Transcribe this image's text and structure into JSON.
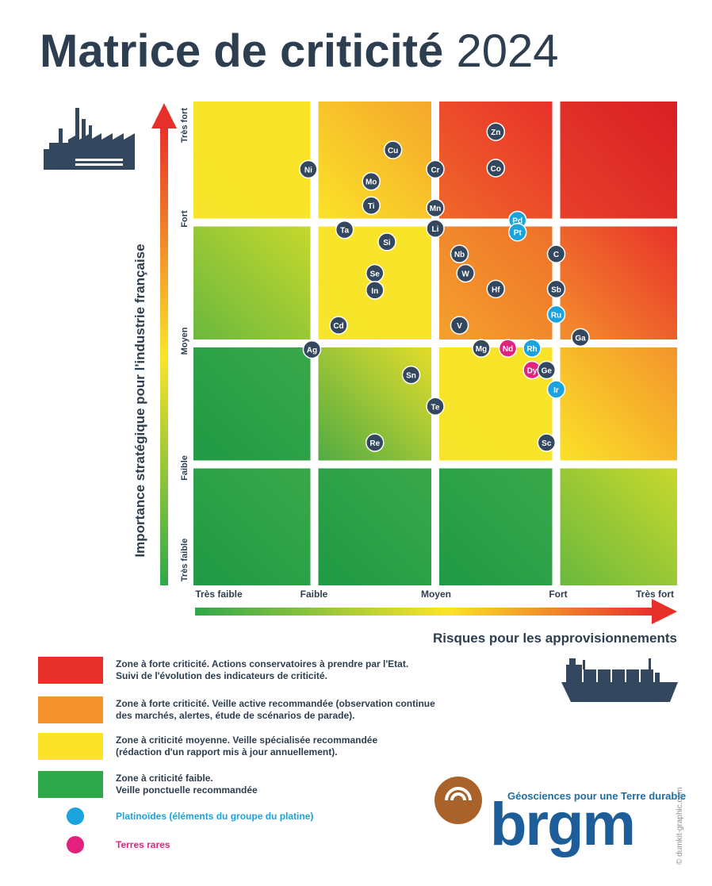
{
  "title": {
    "main": "Matrice de criticité",
    "year": "2024"
  },
  "chart_data": {
    "type": "scatter",
    "xlabel": "Risques pour les approvisionnements",
    "ylabel": "Importance stratégique pour l'industrie française",
    "x_ticks": [
      "Très faible",
      "Faible",
      "Moyen",
      "Fort",
      "Très fort"
    ],
    "y_ticks": [
      "Très faible",
      "Faible",
      "Moyen",
      "Fort",
      "Très fort"
    ],
    "xlim": [
      0,
      4
    ],
    "ylim": [
      0,
      4
    ],
    "zones": [
      [
        "green",
        "green",
        "green",
        "green-yellow"
      ],
      [
        "green",
        "yellow-green",
        "yellow",
        "yellow-orange"
      ],
      [
        "green-yellow",
        "yellow",
        "orange",
        "orange-red"
      ],
      [
        "yellow",
        "orange-yellow",
        "red-orange",
        "red"
      ]
    ],
    "points": [
      {
        "label": "Zn",
        "x": 2.5,
        "y": 3.75,
        "group": "default"
      },
      {
        "label": "Cu",
        "x": 1.65,
        "y": 3.6,
        "group": "default"
      },
      {
        "label": "Ni",
        "x": 0.95,
        "y": 3.44,
        "group": "default"
      },
      {
        "label": "Cr",
        "x": 2.0,
        "y": 3.44,
        "group": "default"
      },
      {
        "label": "Co",
        "x": 2.5,
        "y": 3.45,
        "group": "default"
      },
      {
        "label": "Mo",
        "x": 1.47,
        "y": 3.34,
        "group": "default"
      },
      {
        "label": "Ti",
        "x": 1.47,
        "y": 3.14,
        "group": "default"
      },
      {
        "label": "Mn",
        "x": 2.0,
        "y": 3.12,
        "group": "default"
      },
      {
        "label": "Pd",
        "x": 2.68,
        "y": 3.02,
        "group": "platinoid"
      },
      {
        "label": "Ta",
        "x": 1.25,
        "y": 2.94,
        "group": "default"
      },
      {
        "label": "Li",
        "x": 2.0,
        "y": 2.95,
        "group": "default"
      },
      {
        "label": "Pt",
        "x": 2.68,
        "y": 2.92,
        "group": "platinoid"
      },
      {
        "label": "Si",
        "x": 1.6,
        "y": 2.84,
        "group": "default"
      },
      {
        "label": "Nb",
        "x": 2.2,
        "y": 2.74,
        "group": "default"
      },
      {
        "label": "C",
        "x": 3.0,
        "y": 2.74,
        "group": "default"
      },
      {
        "label": "W",
        "x": 2.25,
        "y": 2.58,
        "group": "default"
      },
      {
        "label": "Se",
        "x": 1.5,
        "y": 2.58,
        "group": "default"
      },
      {
        "label": "In",
        "x": 1.5,
        "y": 2.44,
        "group": "default"
      },
      {
        "label": "Hf",
        "x": 2.5,
        "y": 2.45,
        "group": "default"
      },
      {
        "label": "Sb",
        "x": 3.0,
        "y": 2.45,
        "group": "default"
      },
      {
        "label": "Ru",
        "x": 3.0,
        "y": 2.24,
        "group": "platinoid"
      },
      {
        "label": "Cd",
        "x": 1.2,
        "y": 2.15,
        "group": "default"
      },
      {
        "label": "V",
        "x": 2.2,
        "y": 2.15,
        "group": "default"
      },
      {
        "label": "Ga",
        "x": 3.2,
        "y": 2.05,
        "group": "default"
      },
      {
        "label": "Ag",
        "x": 0.98,
        "y": 1.95,
        "group": "default"
      },
      {
        "label": "Mg",
        "x": 2.38,
        "y": 1.96,
        "group": "default"
      },
      {
        "label": "Nd",
        "x": 2.6,
        "y": 1.96,
        "group": "rare-earth"
      },
      {
        "label": "Rh",
        "x": 2.8,
        "y": 1.96,
        "group": "platinoid"
      },
      {
        "label": "Dy",
        "x": 2.8,
        "y": 1.78,
        "group": "rare-earth"
      },
      {
        "label": "Ge",
        "x": 2.92,
        "y": 1.78,
        "group": "default"
      },
      {
        "label": "Sn",
        "x": 1.8,
        "y": 1.74,
        "group": "default"
      },
      {
        "label": "Ir",
        "x": 3.0,
        "y": 1.62,
        "group": "platinoid"
      },
      {
        "label": "Te",
        "x": 2.0,
        "y": 1.48,
        "group": "default"
      },
      {
        "label": "Re",
        "x": 1.5,
        "y": 1.18,
        "group": "default"
      },
      {
        "label": "Sc",
        "x": 2.92,
        "y": 1.18,
        "group": "default"
      }
    ]
  },
  "colors": {
    "red": "#e8302a",
    "orange": "#f4922c",
    "yellow": "#fbe428",
    "green": "#2ea84a",
    "dot_default": "#33475e",
    "platinoid": "#1aa3dd",
    "rare_earth": "#e3227f",
    "title": "#2d3e50"
  },
  "legend": {
    "items": [
      {
        "text": "Zone à forte criticité. Actions conservatoires à prendre par l'Etat.\nSuivi de l'évolution des indicateurs de criticité.",
        "color": "#e8302a"
      },
      {
        "text": "Zone à forte criticité. Veille active recommandée (observation continue\ndes marchés, alertes, étude de scénarios de parade).",
        "color": "#f4922c"
      },
      {
        "text": "Zone à criticité moyenne. Veille spécialisée recommandée\n(rédaction d'un rapport mis à jour annuellement).",
        "color": "#fbe428"
      },
      {
        "text": "Zone à criticité faible.\nVeille ponctuelle recommandée",
        "color": "#2ea84a"
      }
    ],
    "platinoid_label": "Platinoïdes (éléments du groupe du platine)",
    "rare_earth_label": "Terres rares"
  },
  "icons": {
    "factory": "factory-icon",
    "ship": "cargo-ship-icon",
    "logo": "brgm-logo-icon"
  },
  "brgm": {
    "tagline": "Géosciences pour une Terre durable",
    "wordmark": "brgm"
  },
  "credit": "© dumkit-graphic.com"
}
